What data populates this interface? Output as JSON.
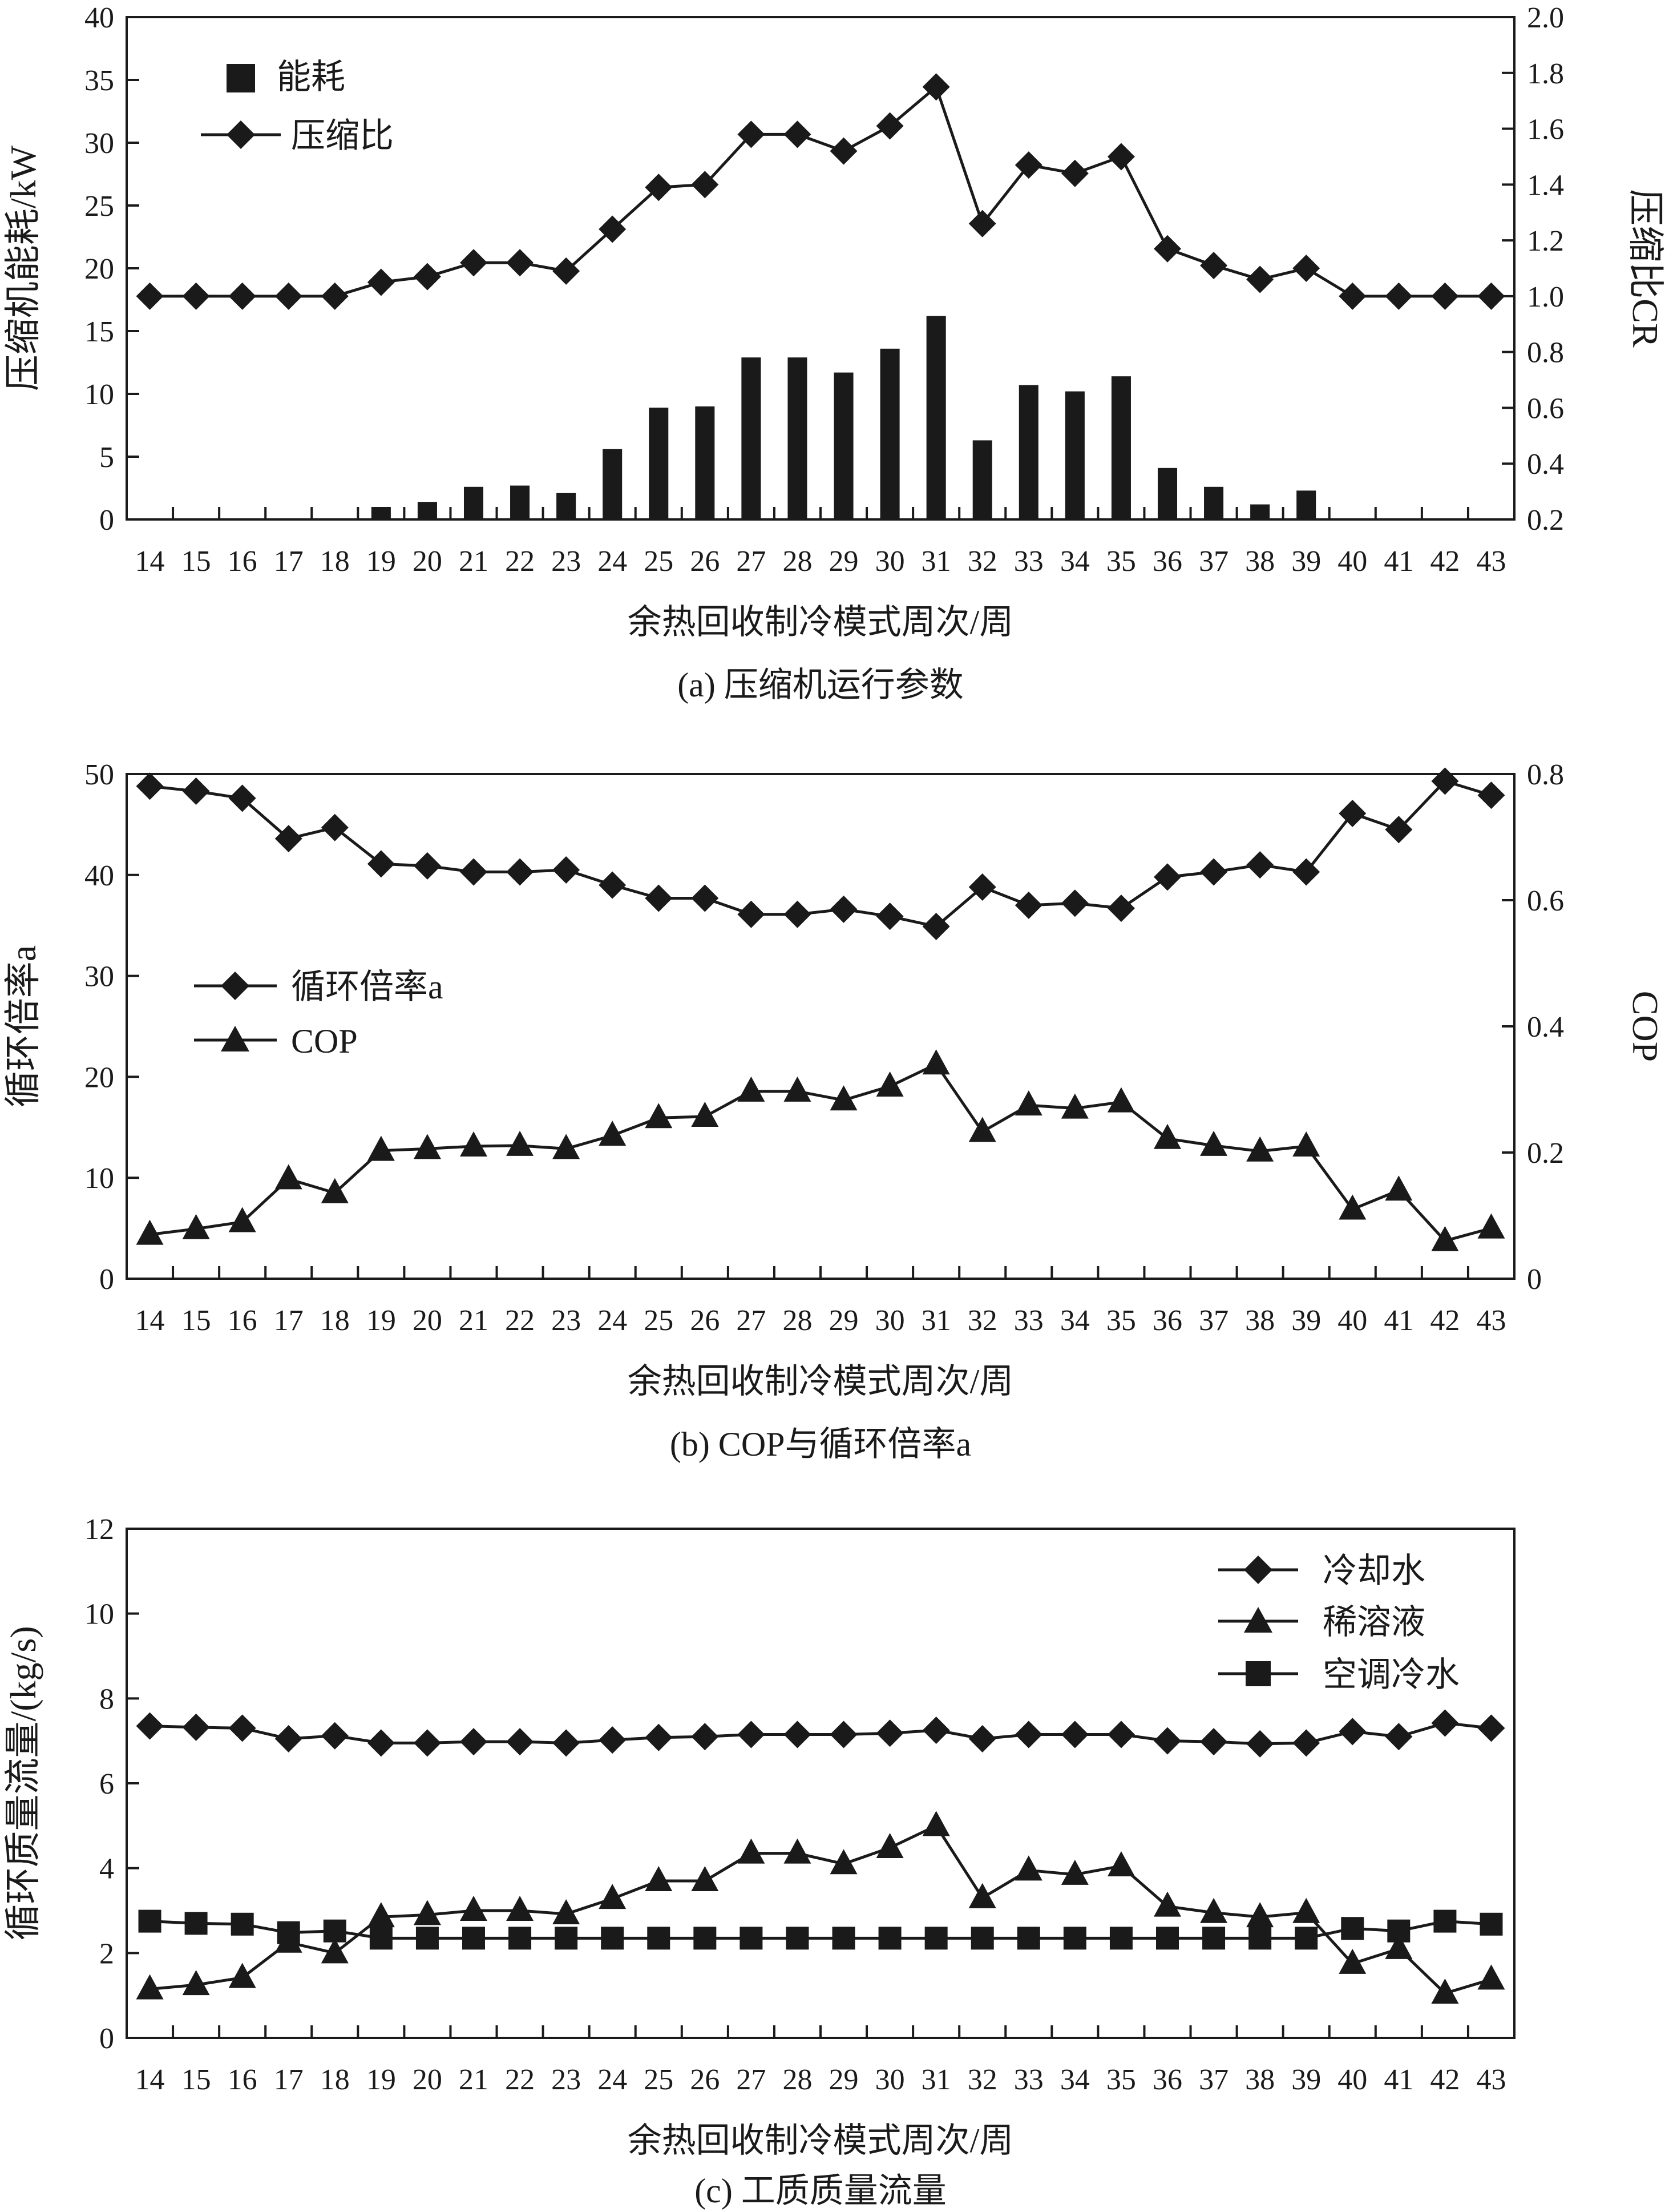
{
  "chart_data": [
    {
      "id": "a",
      "type": "bar+line",
      "caption": "(a) 压缩机运行参数",
      "xlabel": "余热回收制冷模式周次/周",
      "ylabel_left": "压缩机能耗/kW",
      "ylabel_right": "压缩比CR",
      "categories": [
        "14",
        "15",
        "16",
        "17",
        "18",
        "19",
        "20",
        "21",
        "22",
        "23",
        "24",
        "25",
        "26",
        "27",
        "28",
        "29",
        "30",
        "31",
        "32",
        "33",
        "34",
        "35",
        "36",
        "37",
        "38",
        "39",
        "40",
        "41",
        "42",
        "43"
      ],
      "ylim_left": [
        0,
        40
      ],
      "yticks_left": [
        0,
        5,
        10,
        15,
        20,
        25,
        30,
        35,
        40
      ],
      "ylim_right": [
        0.2,
        2.0
      ],
      "yticks_right": [
        "0.2",
        "0.4",
        "0.6",
        "0.8",
        "1.0",
        "1.2",
        "1.4",
        "1.6",
        "1.8",
        "2.0"
      ],
      "legend": [
        "能耗",
        "压缩比"
      ],
      "series": [
        {
          "name": "能耗",
          "type": "bar",
          "axis": "left",
          "values": [
            0,
            0,
            0,
            0,
            0,
            1.0,
            1.4,
            2.6,
            2.7,
            2.1,
            5.6,
            8.9,
            9.0,
            12.9,
            12.9,
            11.7,
            13.6,
            16.2,
            6.3,
            10.7,
            10.2,
            11.4,
            4.1,
            2.6,
            1.2,
            2.3,
            0,
            0,
            0,
            0
          ]
        },
        {
          "name": "压缩比",
          "type": "line",
          "marker": "diamond",
          "axis": "right",
          "values": [
            1.0,
            1.0,
            1.0,
            1.0,
            1.0,
            1.05,
            1.07,
            1.12,
            1.12,
            1.09,
            1.24,
            1.39,
            1.4,
            1.58,
            1.58,
            1.52,
            1.61,
            1.75,
            1.26,
            1.47,
            1.44,
            1.5,
            1.17,
            1.11,
            1.06,
            1.1,
            1.0,
            1.0,
            1.0,
            1.0
          ]
        }
      ]
    },
    {
      "id": "b",
      "type": "line",
      "caption": "(b) COP与循环倍率a",
      "xlabel": "余热回收制冷模式周次/周",
      "ylabel_left": "循环倍率a",
      "ylabel_right": "COP",
      "categories": [
        "14",
        "15",
        "16",
        "17",
        "18",
        "19",
        "20",
        "21",
        "22",
        "23",
        "24",
        "25",
        "26",
        "27",
        "28",
        "29",
        "30",
        "31",
        "32",
        "33",
        "34",
        "35",
        "36",
        "37",
        "38",
        "39",
        "40",
        "41",
        "42",
        "43"
      ],
      "ylim_left": [
        0,
        50
      ],
      "yticks_left": [
        0,
        10,
        20,
        30,
        40,
        50
      ],
      "ylim_right": [
        0,
        0.8
      ],
      "yticks_right": [
        "0",
        "0.2",
        "0.4",
        "0.6",
        "0.8"
      ],
      "legend": [
        "循环倍率a",
        "COP"
      ],
      "series": [
        {
          "name": "循环倍率a",
          "type": "line",
          "marker": "diamond",
          "axis": "left",
          "values": [
            48.8,
            48.3,
            47.6,
            43.6,
            44.7,
            41.1,
            40.9,
            40.3,
            40.3,
            40.5,
            39.0,
            37.7,
            37.7,
            36.1,
            36.1,
            36.6,
            35.9,
            34.9,
            38.8,
            37.0,
            37.2,
            36.7,
            39.8,
            40.3,
            41.0,
            40.3,
            46.1,
            44.5,
            49.3,
            47.9
          ]
        },
        {
          "name": "COP",
          "type": "line",
          "marker": "triangle",
          "axis": "right",
          "values": [
            0.07,
            0.079,
            0.09,
            0.158,
            0.136,
            0.203,
            0.206,
            0.21,
            0.211,
            0.206,
            0.227,
            0.255,
            0.257,
            0.297,
            0.297,
            0.283,
            0.305,
            0.34,
            0.233,
            0.275,
            0.27,
            0.28,
            0.222,
            0.211,
            0.202,
            0.21,
            0.11,
            0.14,
            0.06,
            0.08
          ]
        }
      ]
    },
    {
      "id": "c",
      "type": "line",
      "caption": "(c) 工质质量流量",
      "xlabel": "余热回收制冷模式周次/周",
      "ylabel_left": "循环质量流量/(kg/s)",
      "categories": [
        "14",
        "15",
        "16",
        "17",
        "18",
        "19",
        "20",
        "21",
        "22",
        "23",
        "24",
        "25",
        "26",
        "27",
        "28",
        "29",
        "30",
        "31",
        "32",
        "33",
        "34",
        "35",
        "36",
        "37",
        "38",
        "39",
        "40",
        "41",
        "42",
        "43"
      ],
      "ylim_left": [
        0,
        12
      ],
      "yticks_left": [
        0,
        2,
        4,
        6,
        8,
        10,
        12
      ],
      "legend": [
        "冷却水",
        "稀溶液",
        "空调冷水"
      ],
      "series": [
        {
          "name": "冷却水",
          "type": "line",
          "marker": "diamond",
          "values": [
            7.35,
            7.32,
            7.3,
            7.05,
            7.12,
            6.95,
            6.95,
            6.98,
            6.98,
            6.95,
            7.02,
            7.08,
            7.1,
            7.15,
            7.15,
            7.15,
            7.18,
            7.25,
            7.05,
            7.15,
            7.15,
            7.15,
            7.0,
            6.98,
            6.93,
            6.95,
            7.22,
            7.1,
            7.42,
            7.3
          ]
        },
        {
          "name": "稀溶液",
          "type": "line",
          "marker": "triangle",
          "values": [
            1.15,
            1.25,
            1.42,
            2.25,
            2.0,
            2.85,
            2.9,
            3.0,
            3.0,
            2.92,
            3.28,
            3.7,
            3.7,
            4.35,
            4.35,
            4.1,
            4.48,
            5.0,
            3.3,
            3.95,
            3.85,
            4.05,
            3.1,
            2.95,
            2.85,
            2.95,
            1.75,
            2.1,
            1.05,
            1.38
          ]
        },
        {
          "name": "空调冷水",
          "type": "line",
          "marker": "square",
          "values": [
            2.75,
            2.7,
            2.68,
            2.48,
            2.52,
            2.35,
            2.35,
            2.35,
            2.35,
            2.35,
            2.35,
            2.35,
            2.35,
            2.35,
            2.35,
            2.35,
            2.35,
            2.35,
            2.35,
            2.35,
            2.35,
            2.35,
            2.35,
            2.35,
            2.35,
            2.35,
            2.58,
            2.52,
            2.75,
            2.68
          ]
        }
      ]
    }
  ]
}
